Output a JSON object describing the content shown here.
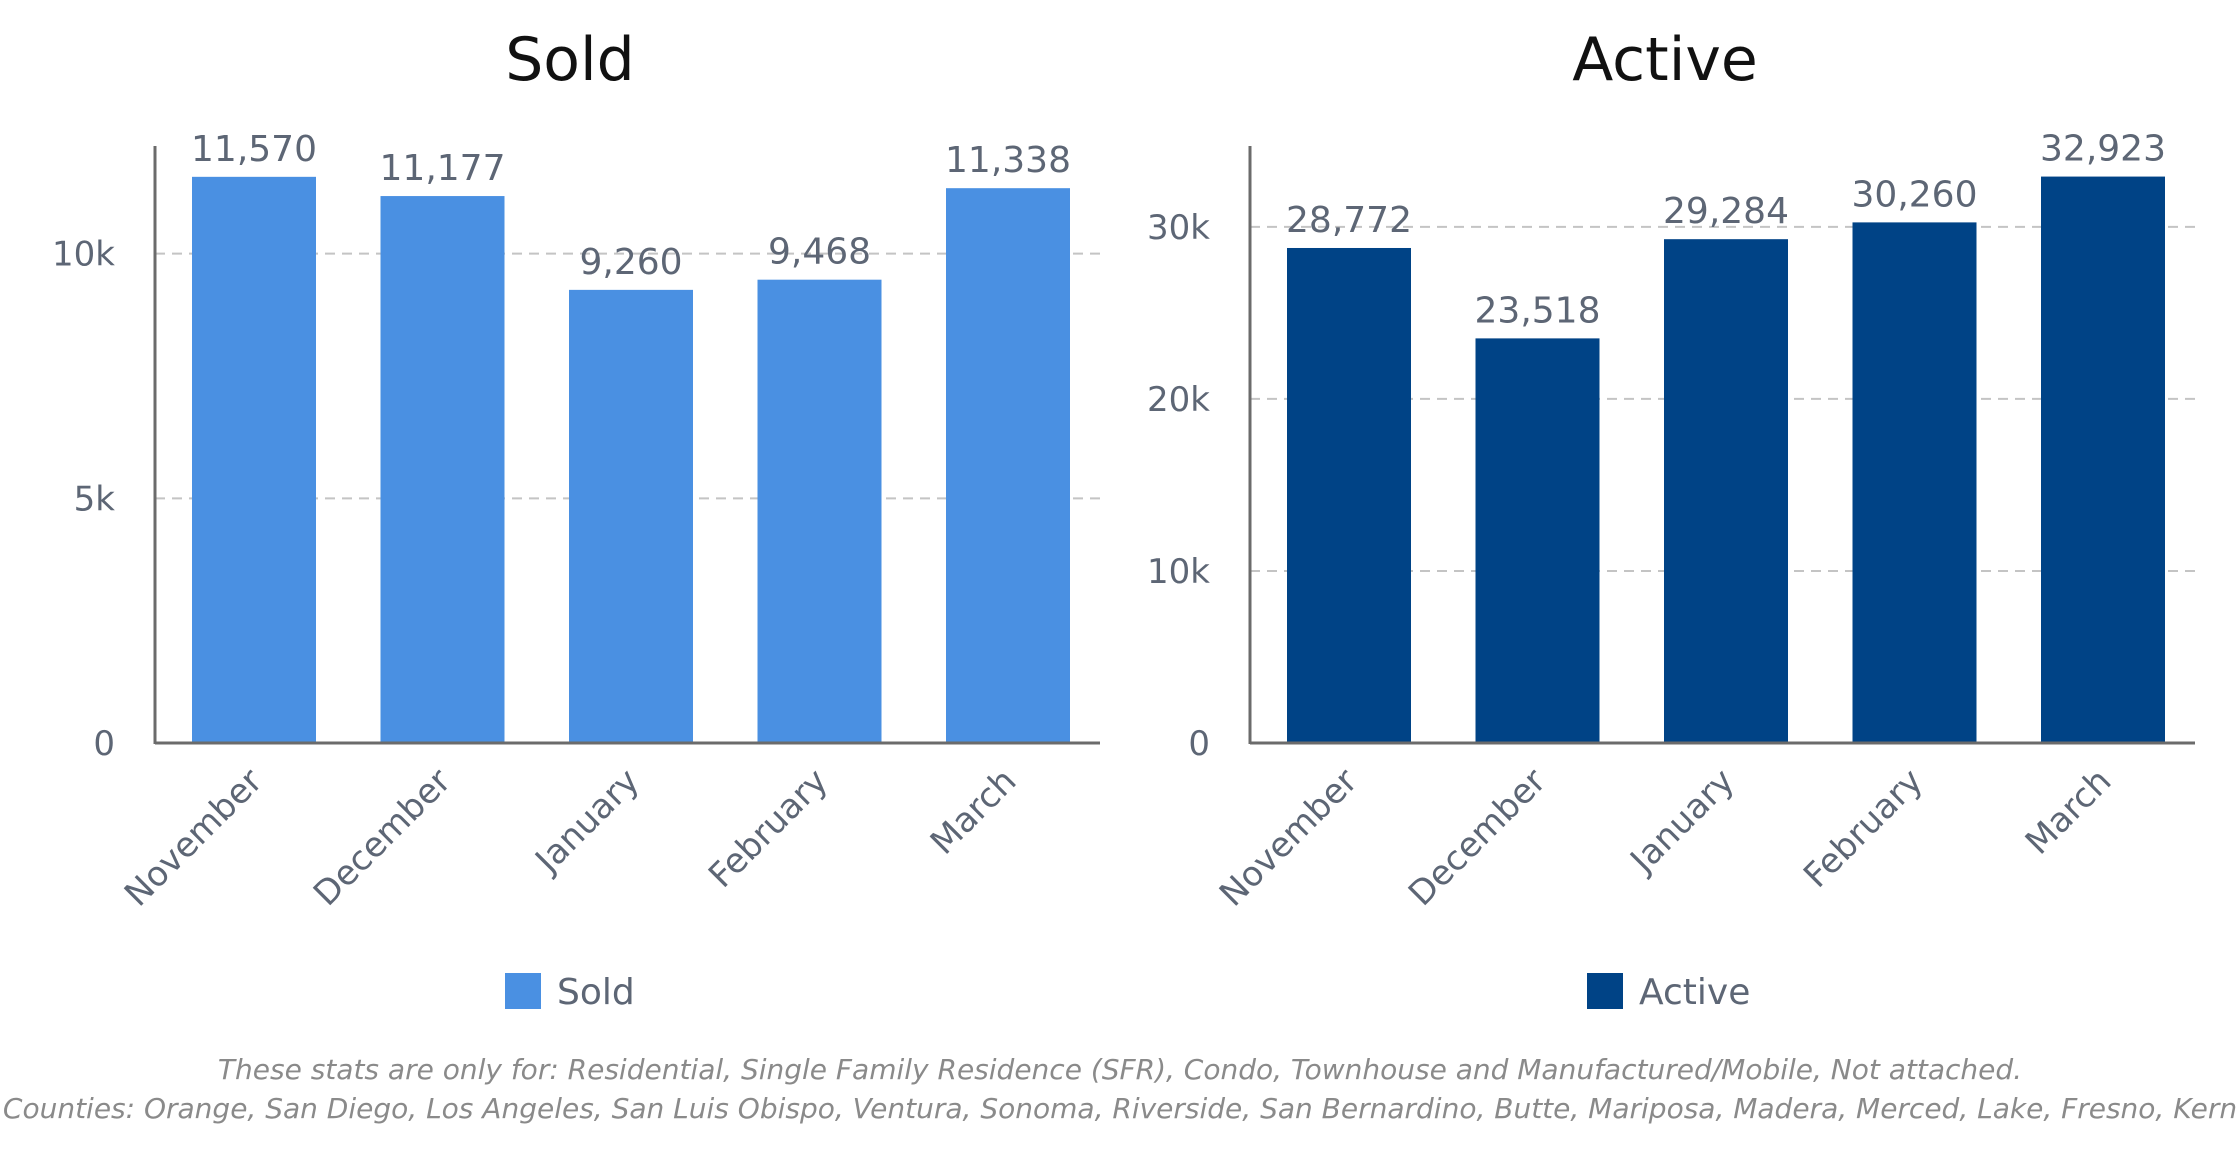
{
  "chart_data": [
    {
      "type": "bar",
      "title": "Sold",
      "categories": [
        "November",
        "December",
        "January",
        "February",
        "March"
      ],
      "series": [
        {
          "name": "Sold",
          "values": [
            11570,
            11177,
            9260,
            9468,
            11338
          ],
          "color": "#4a90e2"
        }
      ],
      "value_labels": [
        "11,570",
        "11,177",
        "9,260",
        "9,468",
        "11,338"
      ],
      "yticks": [
        0,
        5000,
        10000
      ],
      "ytick_labels": [
        "0",
        "5k",
        "10k"
      ],
      "ylim": [
        0,
        12200
      ],
      "grid": "dashed horizontal",
      "legend": "bottom",
      "xlabel": "",
      "ylabel": ""
    },
    {
      "type": "bar",
      "title": "Active",
      "categories": [
        "November",
        "December",
        "January",
        "February",
        "March"
      ],
      "series": [
        {
          "name": "Active",
          "values": [
            28772,
            23518,
            29284,
            30260,
            32923
          ],
          "color": "#004386"
        }
      ],
      "value_labels": [
        "28,772",
        "23,518",
        "29,284",
        "30,260",
        "32,923"
      ],
      "yticks": [
        0,
        10000,
        20000,
        30000
      ],
      "ytick_labels": [
        "0",
        "10k",
        "20k",
        "30k"
      ],
      "ylim": [
        0,
        34700
      ],
      "grid": "dashed horizontal",
      "legend": "bottom",
      "xlabel": "",
      "ylabel": ""
    }
  ],
  "footnote": {
    "line1": "These stats are only for: Residential, Single Family Residence (SFR), Condo, Townhouse and Manufactured/Mobile, Not attached.",
    "line2": "Counties: Orange, San Diego, Los Angeles, San Luis Obispo, Ventura, Sonoma, Riverside, San Bernardino, Butte, Mariposa, Madera, Merced, Lake, Fresno, Kern"
  }
}
